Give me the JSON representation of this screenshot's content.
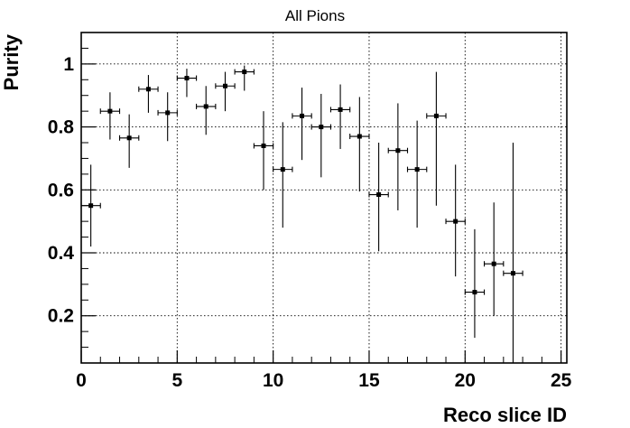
{
  "chart_data": {
    "type": "scatter",
    "title": "All Pions",
    "xlabel": "Reco slice ID",
    "ylabel": "Purity",
    "xlim": [
      0,
      25.3
    ],
    "ylim": [
      0.05,
      1.1
    ],
    "x_ticks": [
      0,
      5,
      10,
      15,
      20,
      25
    ],
    "y_ticks": [
      0.2,
      0.4,
      0.6,
      0.8,
      1
    ],
    "x_tick_labels": [
      "0",
      "5",
      "10",
      "15",
      "20",
      "25"
    ],
    "y_tick_labels": [
      "0.2",
      "0.4",
      "0.6",
      "0.8",
      "1"
    ],
    "grid": true,
    "grid_style": "dotted",
    "marker_color": "#000000",
    "series": [
      {
        "points": [
          {
            "x": 0.5,
            "y": 0.55,
            "xerr": 0.5,
            "yerr_low": 0.13,
            "yerr_high": 0.13
          },
          {
            "x": 1.5,
            "y": 0.85,
            "xerr": 0.5,
            "yerr_low": 0.09,
            "yerr_high": 0.06
          },
          {
            "x": 2.5,
            "y": 0.765,
            "xerr": 0.5,
            "yerr_low": 0.095,
            "yerr_high": 0.075
          },
          {
            "x": 3.5,
            "y": 0.92,
            "xerr": 0.5,
            "yerr_low": 0.075,
            "yerr_high": 0.045
          },
          {
            "x": 4.5,
            "y": 0.845,
            "xerr": 0.5,
            "yerr_low": 0.09,
            "yerr_high": 0.065
          },
          {
            "x": 5.5,
            "y": 0.955,
            "xerr": 0.5,
            "yerr_low": 0.06,
            "yerr_high": 0.03
          },
          {
            "x": 6.5,
            "y": 0.865,
            "xerr": 0.5,
            "yerr_low": 0.09,
            "yerr_high": 0.065
          },
          {
            "x": 7.5,
            "y": 0.93,
            "xerr": 0.5,
            "yerr_low": 0.08,
            "yerr_high": 0.045
          },
          {
            "x": 8.5,
            "y": 0.975,
            "xerr": 0.5,
            "yerr_low": 0.06,
            "yerr_high": 0.02
          },
          {
            "x": 9.5,
            "y": 0.74,
            "xerr": 0.5,
            "yerr_low": 0.14,
            "yerr_high": 0.11
          },
          {
            "x": 10.5,
            "y": 0.665,
            "xerr": 0.5,
            "yerr_low": 0.185,
            "yerr_high": 0.15
          },
          {
            "x": 11.5,
            "y": 0.835,
            "xerr": 0.5,
            "yerr_low": 0.14,
            "yerr_high": 0.09
          },
          {
            "x": 12.5,
            "y": 0.8,
            "xerr": 0.5,
            "yerr_low": 0.16,
            "yerr_high": 0.105
          },
          {
            "x": 13.5,
            "y": 0.855,
            "xerr": 0.5,
            "yerr_low": 0.125,
            "yerr_high": 0.08
          },
          {
            "x": 14.5,
            "y": 0.77,
            "xerr": 0.5,
            "yerr_low": 0.175,
            "yerr_high": 0.125
          },
          {
            "x": 15.5,
            "y": 0.585,
            "xerr": 0.5,
            "yerr_low": 0.18,
            "yerr_high": 0.165
          },
          {
            "x": 16.5,
            "y": 0.725,
            "xerr": 0.5,
            "yerr_low": 0.19,
            "yerr_high": 0.15
          },
          {
            "x": 17.5,
            "y": 0.665,
            "xerr": 0.5,
            "yerr_low": 0.185,
            "yerr_high": 0.155
          },
          {
            "x": 18.5,
            "y": 0.835,
            "xerr": 0.5,
            "yerr_low": 0.285,
            "yerr_high": 0.14
          },
          {
            "x": 19.5,
            "y": 0.5,
            "xerr": 0.5,
            "yerr_low": 0.175,
            "yerr_high": 0.18
          },
          {
            "x": 20.5,
            "y": 0.275,
            "xerr": 0.5,
            "yerr_low": 0.145,
            "yerr_high": 0.2
          },
          {
            "x": 21.5,
            "y": 0.365,
            "xerr": 0.5,
            "yerr_low": 0.165,
            "yerr_high": 0.195
          },
          {
            "x": 22.5,
            "y": 0.335,
            "xerr": 0.5,
            "yerr_low": 0.285,
            "yerr_high": 0.415
          }
        ]
      }
    ]
  }
}
